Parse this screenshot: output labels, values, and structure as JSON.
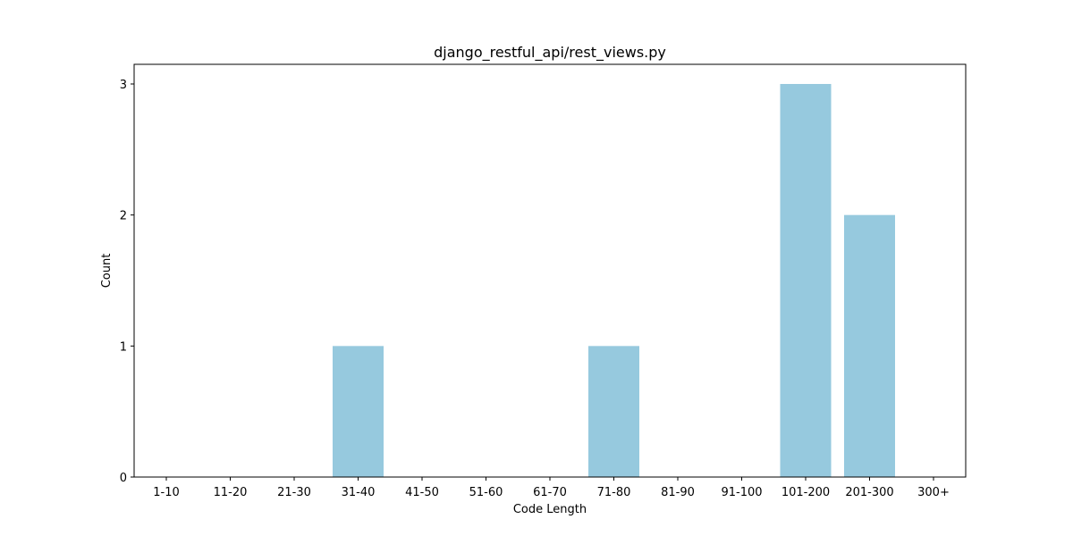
{
  "chart_data": {
    "type": "bar",
    "title": "django_restful_api/rest_views.py",
    "xlabel": "Code Length",
    "ylabel": "Count",
    "categories": [
      "1-10",
      "11-20",
      "21-30",
      "31-40",
      "41-50",
      "51-60",
      "61-70",
      "71-80",
      "81-90",
      "91-100",
      "101-200",
      "201-300",
      "300+"
    ],
    "values": [
      0,
      0,
      0,
      1,
      0,
      0,
      0,
      1,
      0,
      0,
      3,
      2,
      0
    ],
    "ylim": [
      0,
      3.15
    ],
    "yticks": [
      0,
      1,
      2,
      3
    ],
    "grid": false,
    "legend": false,
    "bar_color": "#96c9de"
  }
}
